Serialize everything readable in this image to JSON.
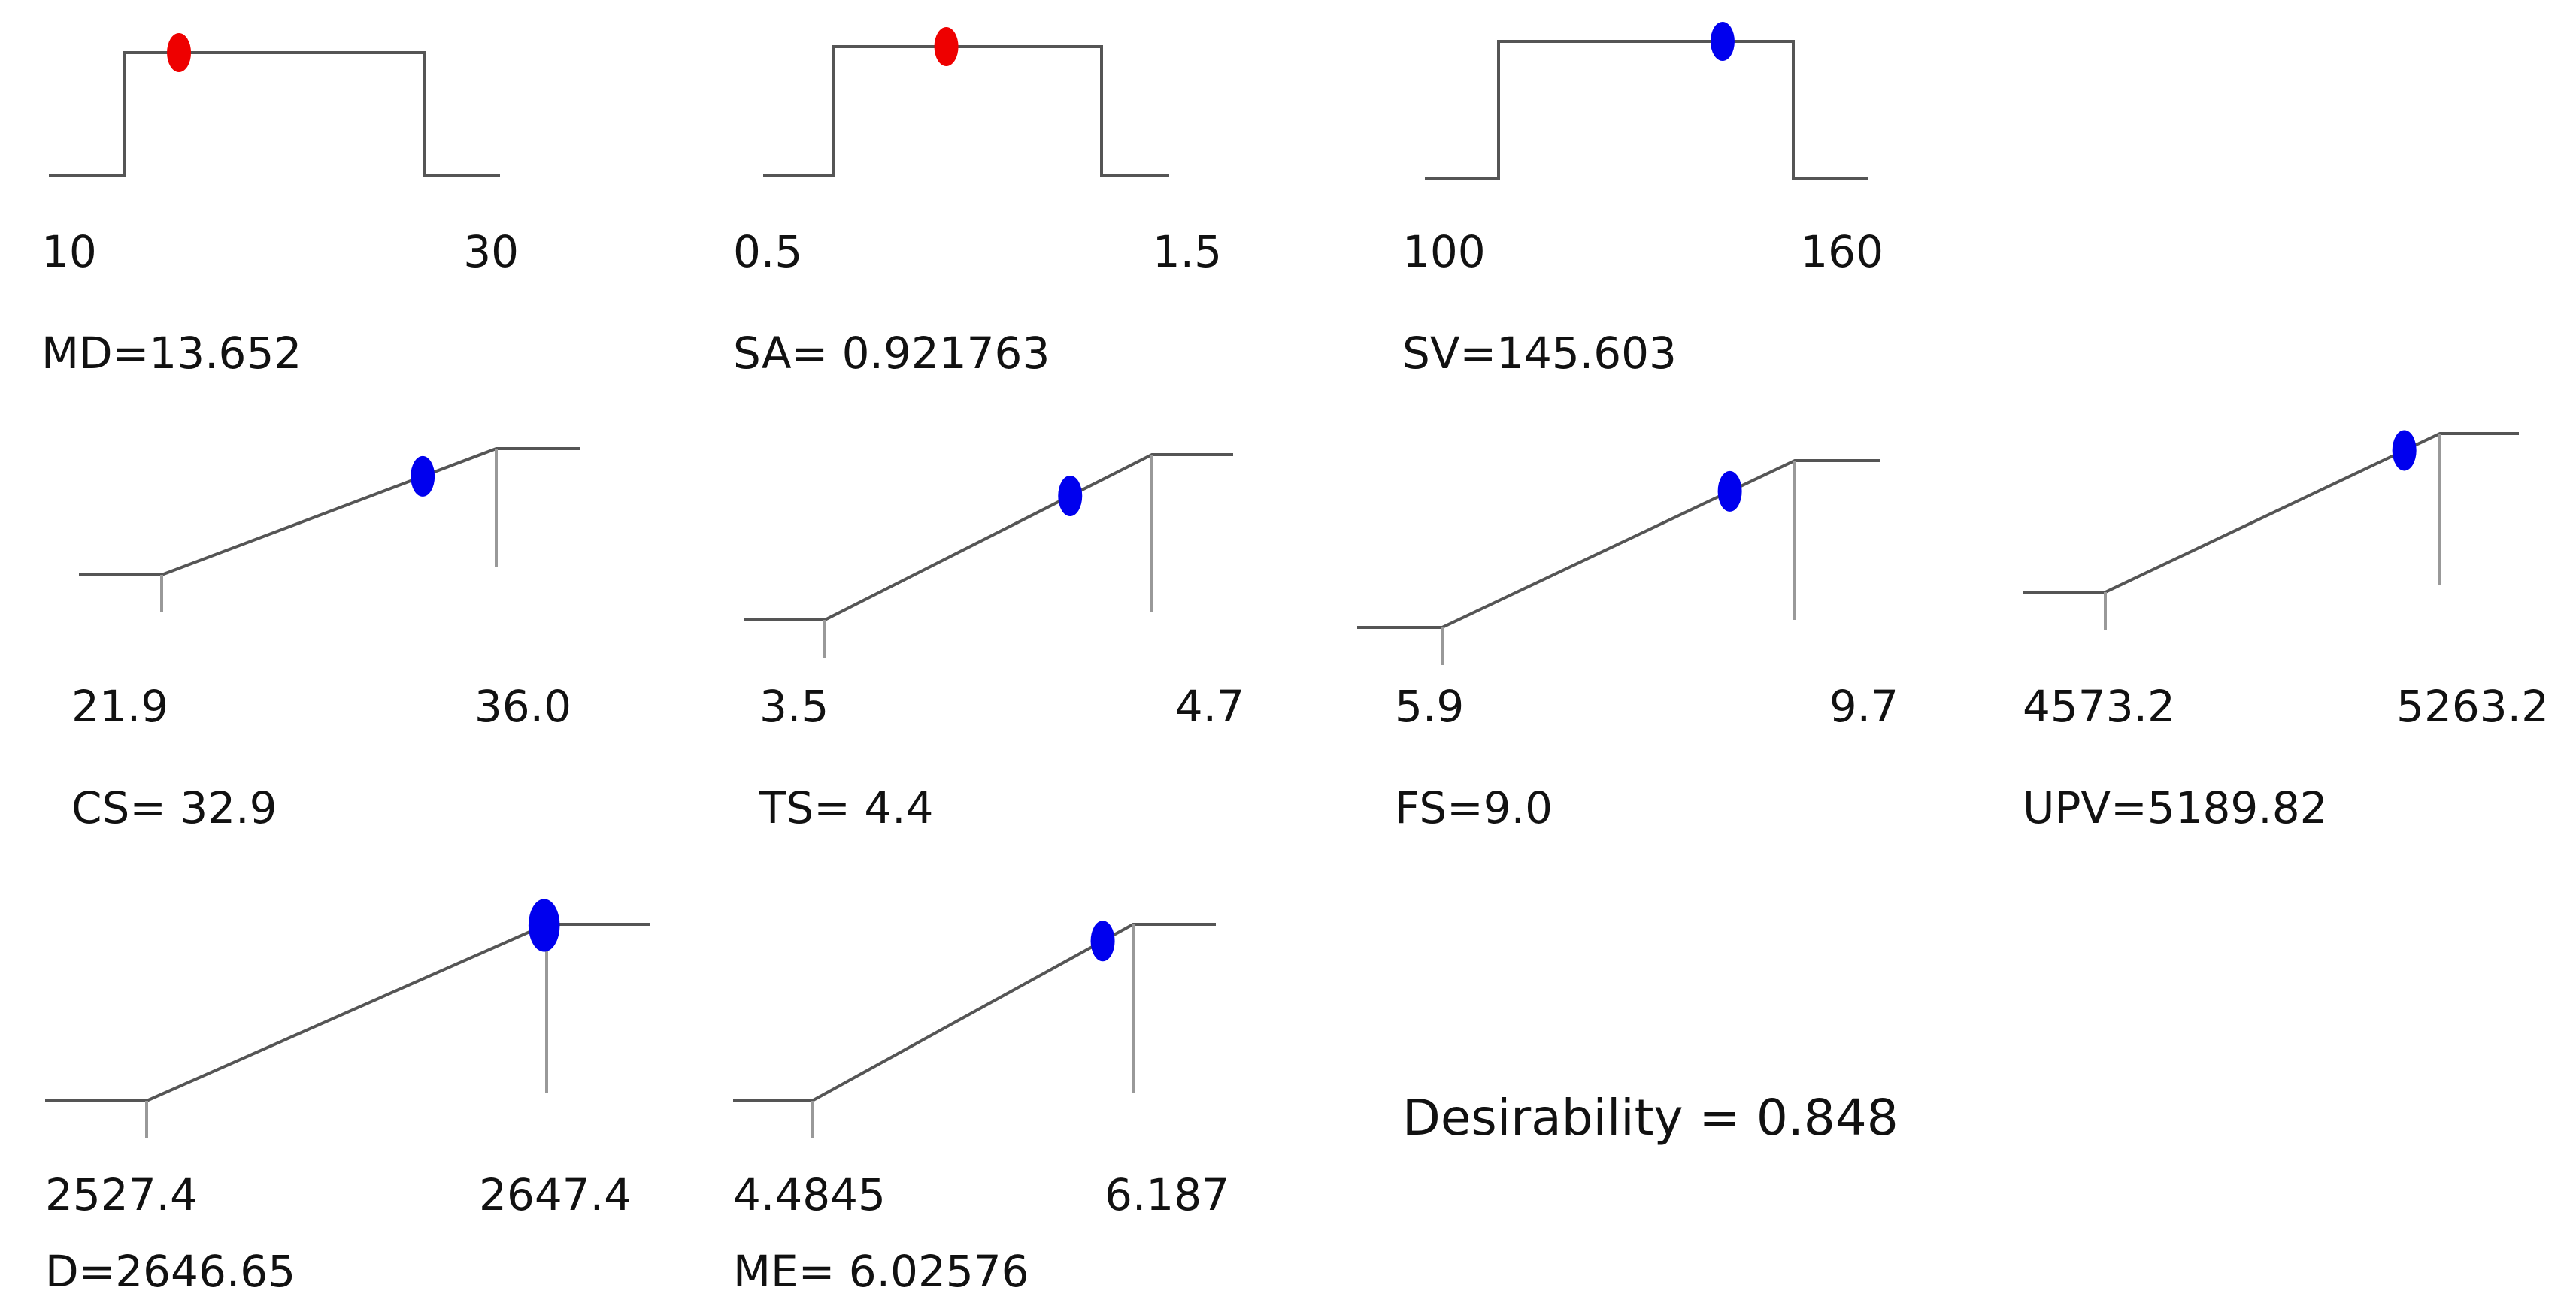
{
  "chart_data": [
    {
      "type": "desirability-ramp",
      "shape": "factor",
      "name": "MD",
      "min": 10,
      "max": 30,
      "min_label": "10",
      "max_label": "30",
      "value": 13.652,
      "result_label": "MD=13.652",
      "marker_color": "red"
    },
    {
      "type": "desirability-ramp",
      "shape": "factor",
      "name": "SA",
      "min": 0.5,
      "max": 1.5,
      "min_label": "0.5",
      "max_label": "1.5",
      "value": 0.921763,
      "result_label": "SA= 0.921763",
      "marker_color": "red"
    },
    {
      "type": "desirability-ramp",
      "shape": "factor",
      "name": "SV",
      "min": 100,
      "max": 160,
      "min_label": "100",
      "max_label": "160",
      "value": 145.603,
      "result_label": "SV=145.603",
      "marker_color": "blue"
    },
    {
      "type": "desirability-ramp",
      "shape": "maximize",
      "name": "CS",
      "min": 21.9,
      "max": 36.0,
      "min_label": "21.9",
      "max_label": "36.0",
      "value": 32.9,
      "result_label": "CS= 32.9",
      "marker_color": "blue"
    },
    {
      "type": "desirability-ramp",
      "shape": "maximize",
      "name": "TS",
      "min": 3.5,
      "max": 4.7,
      "min_label": "3.5",
      "max_label": "4.7",
      "value": 4.4,
      "result_label": "TS= 4.4",
      "marker_color": "blue"
    },
    {
      "type": "desirability-ramp",
      "shape": "maximize",
      "name": "FS",
      "min": 5.9,
      "max": 9.7,
      "min_label": "5.9",
      "max_label": "9.7",
      "value": 9.0,
      "result_label": "FS=9.0",
      "marker_color": "blue"
    },
    {
      "type": "desirability-ramp",
      "shape": "maximize",
      "name": "UPV",
      "min": 4573.2,
      "max": 5263.2,
      "min_label": "4573.2",
      "max_label": "5263.2",
      "value": 5189.82,
      "result_label": "UPV=5189.82",
      "marker_color": "blue"
    },
    {
      "type": "desirability-ramp",
      "shape": "maximize",
      "name": "D",
      "min": 2527.4,
      "max": 2647.4,
      "min_label": "2527.4",
      "max_label": "2647.4",
      "value": 2646.65,
      "result_label": "D=2646.65",
      "marker_color": "blue"
    },
    {
      "type": "desirability-ramp",
      "shape": "maximize",
      "name": "ME",
      "min": 4.4845,
      "max": 6.187,
      "min_label": "4.4845",
      "max_label": "6.187",
      "value": 6.02576,
      "result_label": "ME= 6.02576",
      "marker_color": "blue"
    }
  ],
  "desirability": {
    "label": "Desirability = 0.848",
    "value": 0.848
  },
  "colors": {
    "red": "#ee0000",
    "blue": "#0000ee",
    "line": "#555555",
    "tick": "#999999",
    "text": "#111111"
  }
}
